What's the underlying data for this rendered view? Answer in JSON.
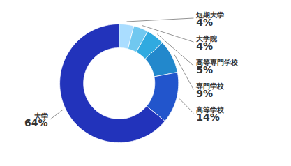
{
  "chart_data": {
    "type": "donut",
    "categories": [
      "短期大学",
      "大学院",
      "高等専門学校",
      "専門学校",
      "高等学校",
      "大学"
    ],
    "values": [
      4,
      4,
      5,
      9,
      14,
      64
    ],
    "value_labels": [
      "4%",
      "4%",
      "5%",
      "9%",
      "14%",
      "64%"
    ],
    "colors": [
      "#aaddff",
      "#70c8f0",
      "#30aae0",
      "#2288cc",
      "#2255cc",
      "#2233bb"
    ],
    "data_labels": true
  }
}
